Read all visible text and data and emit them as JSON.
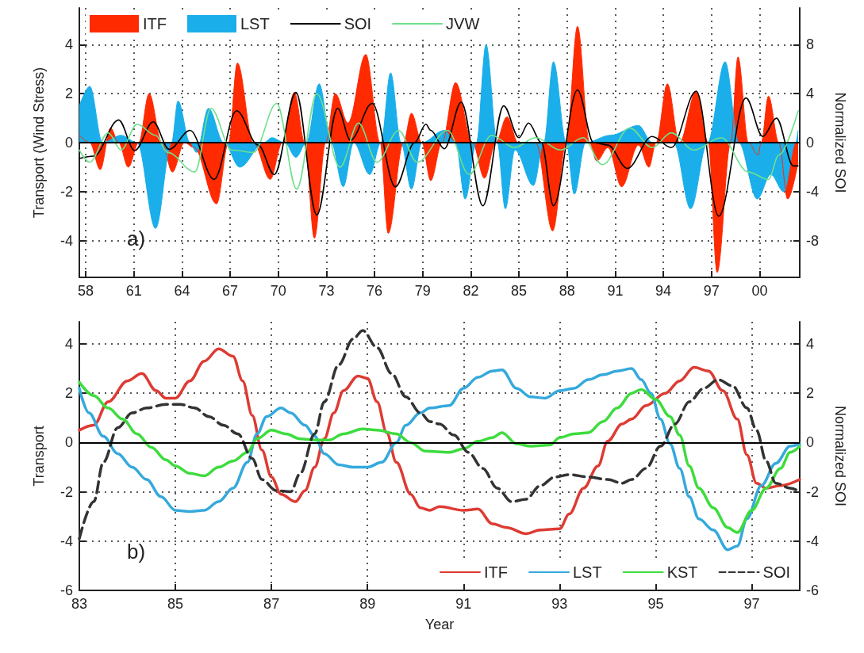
{
  "chart_data": [
    {
      "type": "area",
      "ylabel": "Transport (Wind Stress)",
      "y2label": "Normalized SOI",
      "annotations": [
        "a)"
      ],
      "legend": "top",
      "grid": true,
      "xlim": [
        1957.6,
        2002.5
      ],
      "xticks": [
        {
          "value": 1958,
          "label": "58"
        },
        {
          "value": 1961,
          "label": "61"
        },
        {
          "value": 1964,
          "label": "64"
        },
        {
          "value": 1967,
          "label": "67"
        },
        {
          "value": 1970,
          "label": "70"
        },
        {
          "value": 1973,
          "label": "73"
        },
        {
          "value": 1976,
          "label": "76"
        },
        {
          "value": 1979,
          "label": "79"
        },
        {
          "value": 1982,
          "label": "82"
        },
        {
          "value": 1985,
          "label": "85"
        },
        {
          "value": 1988,
          "label": "88"
        },
        {
          "value": 1991,
          "label": "91"
        },
        {
          "value": 1994,
          "label": "94"
        },
        {
          "value": 1997,
          "label": "97"
        },
        {
          "value": 2000,
          "label": "00"
        }
      ],
      "ylim": [
        -5.5,
        5.5
      ],
      "yticks": [
        -4,
        -2,
        0,
        2,
        4
      ],
      "y2lim": [
        -11,
        11
      ],
      "y2ticks": [
        -8,
        -4,
        0,
        4,
        8
      ],
      "ref_lines": [
        {
          "axis": "y",
          "value": 0,
          "color": "#000000"
        }
      ],
      "series": [
        {
          "name": "ITF",
          "color": "#ff2a00",
          "x": [
            1957.6,
            1958.25,
            1958.9,
            1959.55,
            1960.05,
            1960.65,
            1961.3,
            1961.95,
            1962.75,
            1963.4,
            1964.15,
            1964.75,
            1966.15,
            1966.9,
            1967.45,
            1968.45,
            1969.5,
            1970.25,
            1971.0,
            1971.65,
            1972.25,
            1972.95,
            1973.55,
            1974.35,
            1975.45,
            1976.35,
            1976.85,
            1977.8,
            1978.3,
            1978.95,
            1979.5,
            1980.2,
            1981.05,
            1982.1,
            1982.85,
            1983.55,
            1984.25,
            1984.95,
            1986.05,
            1987.1,
            1987.95,
            1988.65,
            1989.4,
            1989.85,
            1990.55,
            1991.4,
            1992.45,
            1993.1,
            1993.55,
            1994.25,
            1995.0,
            1996.05,
            1996.8,
            1997.35,
            1998.2,
            1998.65,
            1999.3,
            1999.9,
            2000.1,
            2000.55,
            2001.2,
            2001.75,
            2002.4
          ],
          "values": [
            0.3,
            0,
            -1.1,
            0.6,
            0,
            -1.0,
            0,
            2.0,
            0,
            -1.2,
            0,
            -0.2,
            -2.5,
            0,
            3.25,
            0,
            -1.5,
            0,
            2.05,
            0,
            -3.9,
            0,
            2.0,
            0.8,
            3.6,
            0,
            -3.7,
            0,
            1.2,
            0,
            -1.55,
            0,
            2.45,
            0,
            -1.45,
            0,
            1.05,
            0,
            0,
            -3.6,
            0,
            4.75,
            0,
            -0.75,
            -0.2,
            -1.8,
            -0.1,
            -1.0,
            0,
            2.4,
            0,
            2.1,
            0,
            -5.3,
            0,
            3.5,
            0,
            -0.5,
            0,
            1.9,
            0,
            -2.3,
            -0.8
          ]
        },
        {
          "name": "LST",
          "color": "#1aaeea",
          "x": [
            1957.6,
            1958.25,
            1959.05,
            1960.2,
            1961.2,
            1962.35,
            1963.35,
            1963.75,
            1964.5,
            1964.9,
            1965.65,
            1966.6,
            1967.6,
            1969.1,
            1969.6,
            1970.4,
            1971.1,
            1971.75,
            1972.55,
            1973.3,
            1974.05,
            1974.7,
            1975.7,
            1976.4,
            1977.0,
            1977.65,
            1978.3,
            1978.95,
            1980.35,
            1981.05,
            1981.65,
            1982.35,
            1982.95,
            1983.65,
            1984.15,
            1984.75,
            1985.9,
            1986.55,
            1987.15,
            1987.95,
            1988.45,
            1989.15,
            1990.7,
            1992.45,
            1993.3,
            1994.65,
            1995.7,
            1996.75,
            1997.85,
            1998.7,
            1999.85,
            2000.7,
            2001.5,
            2002.25,
            2002.4
          ],
          "values": [
            1.5,
            2.3,
            0,
            0.3,
            0,
            -3.5,
            0,
            1.7,
            0,
            -0.4,
            1.4,
            0,
            -1.0,
            0,
            0.2,
            0,
            -0.6,
            0,
            2.4,
            0,
            -1.8,
            0,
            -1.3,
            0,
            2.85,
            0,
            -1.9,
            0,
            0.5,
            0,
            -2.3,
            0,
            4.0,
            0,
            -2.7,
            -0.3,
            -1.75,
            0,
            3.3,
            0,
            -2.1,
            0,
            0.3,
            0.7,
            0,
            0,
            -2.7,
            0,
            3.3,
            0,
            -2.3,
            -1.3,
            -2.0,
            0,
            0.5
          ]
        },
        {
          "name": "SOI",
          "type": "line",
          "axis": "y2",
          "color": "#000000",
          "x": [
            1957.6,
            1958.5,
            1960.05,
            1961.05,
            1962.2,
            1963.2,
            1964.5,
            1966.0,
            1967.4,
            1968.75,
            1969.75,
            1971.1,
            1972.4,
            1973.7,
            1974.5,
            1975.85,
            1977.3,
            1978.5,
            1979.2,
            1979.5,
            1980.35,
            1981.4,
            1982.75,
            1984.05,
            1985.0,
            1985.6,
            1986.4,
            1987.15,
            1988.65,
            1989.65,
            1990.55,
            1991.75,
            1993.3,
            1994.5,
            1996.05,
            1997.45,
            1999.15,
            2000.2,
            2001.05,
            2002.1,
            2002.4
          ],
          "values": [
            -1.3,
            -1.1,
            1.85,
            -0.65,
            1.7,
            -0.55,
            1.0,
            -3.0,
            2.6,
            -0.2,
            -2.6,
            4.1,
            -5.9,
            2.8,
            0.2,
            3.2,
            -3.6,
            0,
            1.5,
            1.0,
            -0.5,
            3.3,
            -5.15,
            3.0,
            0.4,
            1.6,
            0,
            -5.15,
            4.3,
            0,
            -0.2,
            -2.1,
            0.5,
            -0.4,
            4.2,
            -6.0,
            3.65,
            0.5,
            2.0,
            -1.9,
            -1.9
          ]
        },
        {
          "name": "JVW",
          "type": "line",
          "color": "#6ee08c",
          "x": [
            1957.6,
            1958.25,
            1959.4,
            1960.2,
            1961.2,
            1962.35,
            1963.1,
            1964.8,
            1965.8,
            1967.1,
            1968.45,
            1969.9,
            1971.15,
            1972.4,
            1973.85,
            1975.0,
            1976.15,
            1977.5,
            1978.65,
            1980.55,
            1981.9,
            1983.3,
            1984.7,
            1986.05,
            1987.6,
            1989.0,
            1990.2,
            1991.9,
            1993.3,
            1994.5,
            1995.9,
            1997.6,
            1999.3,
            2000.55,
            2001.2,
            2002.4
          ],
          "values": [
            -0.3,
            -0.8,
            0.4,
            -0.3,
            0.75,
            0.3,
            -0.4,
            -1.2,
            1.4,
            -0.3,
            -0.4,
            1.6,
            -1.9,
            2.0,
            -1.0,
            0.8,
            -0.8,
            0.5,
            -0.8,
            0.5,
            -1.3,
            0.3,
            -0.2,
            0.2,
            -0.3,
            0.2,
            -0.9,
            0.6,
            -0.2,
            0.4,
            -0.3,
            0.2,
            -1.2,
            -1.5,
            -0.5,
            1.3
          ]
        }
      ]
    },
    {
      "type": "line",
      "xlabel": "Year",
      "ylabel": "Transport",
      "y2label": "Normalized SOI",
      "annotations": [
        "b)"
      ],
      "legend": "bottom right",
      "grid": true,
      "xlim": [
        1983,
        1998
      ],
      "xticks": [
        {
          "value": 1983,
          "label": "83"
        },
        {
          "value": 1985,
          "label": "85"
        },
        {
          "value": 1987,
          "label": "87"
        },
        {
          "value": 1989,
          "label": "89"
        },
        {
          "value": 1991,
          "label": "91"
        },
        {
          "value": 1993,
          "label": "93"
        },
        {
          "value": 1995,
          "label": "95"
        },
        {
          "value": 1997,
          "label": "97"
        }
      ],
      "ylim": [
        -6,
        4.9
      ],
      "yticks": [
        -6,
        -4,
        -2,
        0,
        2,
        4
      ],
      "y2lim": [
        -6,
        4.9
      ],
      "y2ticks": [
        -6,
        -4,
        -2,
        0,
        2,
        4
      ],
      "ref_lines": [
        {
          "axis": "y",
          "value": 0,
          "color": "#000000"
        }
      ],
      "series": [
        {
          "name": "ITF",
          "color": "#dd3b33",
          "x": [
            1983.0,
            1983.3,
            1983.6,
            1984.0,
            1984.3,
            1984.6,
            1984.8,
            1985.0,
            1985.3,
            1985.6,
            1985.9,
            1986.2,
            1986.4,
            1986.6,
            1986.8,
            1987.0,
            1987.2,
            1987.5,
            1987.7,
            1987.9,
            1988.1,
            1988.3,
            1988.5,
            1988.8,
            1989.0,
            1989.2,
            1989.4,
            1989.6,
            1989.9,
            1990.1,
            1990.3,
            1990.5,
            1991.0,
            1991.3,
            1991.6,
            1991.9,
            1992.3,
            1992.6,
            1993.0,
            1993.2,
            1993.5,
            1993.8,
            1994.0,
            1994.3,
            1994.5,
            1994.8,
            1995.2,
            1995.5,
            1995.8,
            1996.1,
            1996.4,
            1996.7,
            1996.9,
            1997.1,
            1997.3,
            1997.6,
            1998.0
          ],
          "values": [
            0.5,
            0.7,
            1.65,
            2.5,
            2.8,
            2.1,
            1.8,
            1.8,
            2.5,
            3.3,
            3.8,
            3.5,
            2.5,
            1.1,
            -0.3,
            -1.4,
            -2.1,
            -2.4,
            -1.95,
            -1.0,
            0.15,
            1.2,
            2.1,
            2.7,
            2.6,
            1.65,
            0.4,
            -0.8,
            -2.1,
            -2.65,
            -2.75,
            -2.6,
            -2.75,
            -2.7,
            -3.3,
            -3.45,
            -3.7,
            -3.55,
            -3.5,
            -2.9,
            -1.85,
            -0.95,
            0.05,
            0.75,
            0.95,
            1.5,
            2.0,
            2.5,
            3.05,
            2.9,
            2.1,
            0.95,
            -0.5,
            -1.65,
            -1.85,
            -1.75,
            -1.5
          ]
        },
        {
          "name": "LST",
          "color": "#35a9dc",
          "x": [
            1983.0,
            1983.2,
            1983.5,
            1983.8,
            1984.1,
            1984.4,
            1984.7,
            1985.0,
            1985.3,
            1985.6,
            1985.9,
            1986.2,
            1986.5,
            1986.7,
            1986.9,
            1987.2,
            1987.4,
            1987.7,
            1987.9,
            1988.1,
            1988.4,
            1988.7,
            1989.0,
            1989.3,
            1989.6,
            1989.8,
            1990.1,
            1990.3,
            1990.7,
            1991.0,
            1991.3,
            1991.6,
            1991.8,
            1992.1,
            1992.4,
            1992.7,
            1993.0,
            1993.3,
            1993.6,
            1993.9,
            1994.2,
            1994.5,
            1994.7,
            1994.9,
            1995.1,
            1995.3,
            1995.5,
            1995.7,
            1995.9,
            1996.2,
            1996.5,
            1996.7,
            1996.9,
            1997.2,
            1997.5,
            1997.8,
            1998.0
          ],
          "values": [
            2.2,
            1.2,
            0.25,
            -0.45,
            -1.0,
            -1.5,
            -2.2,
            -2.75,
            -2.8,
            -2.75,
            -2.4,
            -1.85,
            -0.8,
            0.35,
            1.05,
            1.4,
            1.2,
            0.7,
            0.25,
            -0.45,
            -0.9,
            -1.0,
            -1.0,
            -0.8,
            0.0,
            0.7,
            1.2,
            1.4,
            1.5,
            2.2,
            2.65,
            2.9,
            2.95,
            2.2,
            1.85,
            1.8,
            2.1,
            2.2,
            2.55,
            2.75,
            2.9,
            3.0,
            2.55,
            2.0,
            0.95,
            -0.05,
            -1.05,
            -2.2,
            -3.1,
            -3.55,
            -4.35,
            -4.2,
            -3.1,
            -1.75,
            -0.85,
            -0.15,
            -0.05
          ]
        },
        {
          "name": "KST",
          "color": "#3ddc3d",
          "x": [
            1983.0,
            1983.3,
            1983.6,
            1983.9,
            1984.2,
            1984.5,
            1984.8,
            1985.0,
            1985.3,
            1985.6,
            1985.9,
            1986.2,
            1986.5,
            1986.7,
            1987.0,
            1987.3,
            1987.6,
            1987.9,
            1988.2,
            1988.5,
            1988.9,
            1989.2,
            1989.6,
            1989.9,
            1990.2,
            1990.7,
            1991.0,
            1991.3,
            1991.6,
            1991.8,
            1992.1,
            1992.4,
            1992.8,
            1993.0,
            1993.3,
            1993.6,
            1993.9,
            1994.2,
            1994.5,
            1994.7,
            1995.0,
            1995.3,
            1995.5,
            1995.7,
            1995.9,
            1996.2,
            1996.5,
            1996.7,
            1997.0,
            1997.3,
            1997.6,
            1997.8,
            1998.0
          ],
          "values": [
            2.45,
            1.9,
            1.4,
            0.95,
            0.35,
            -0.2,
            -0.7,
            -0.95,
            -1.25,
            -1.35,
            -1.0,
            -0.75,
            -0.4,
            0.15,
            0.5,
            0.35,
            0.15,
            0.1,
            0.1,
            0.35,
            0.55,
            0.5,
            0.35,
            0.0,
            -0.35,
            -0.4,
            -0.25,
            0.05,
            0.2,
            0.4,
            -0.05,
            -0.15,
            -0.1,
            0.2,
            0.35,
            0.4,
            0.85,
            1.4,
            2.0,
            2.15,
            1.75,
            1.05,
            0.3,
            -0.95,
            -1.85,
            -2.65,
            -3.45,
            -3.65,
            -2.75,
            -1.85,
            -1.05,
            -0.4,
            -0.15
          ]
        },
        {
          "name": "SOI",
          "axis": "y2",
          "line_style": "dashed",
          "color": "#333333",
          "x": [
            1983.0,
            1983.3,
            1983.5,
            1983.8,
            1984.1,
            1984.4,
            1984.8,
            1985.1,
            1985.4,
            1985.7,
            1986.0,
            1986.3,
            1986.6,
            1986.8,
            1987.1,
            1987.4,
            1987.6,
            1987.9,
            1988.1,
            1988.4,
            1988.7,
            1988.9,
            1989.2,
            1989.5,
            1989.8,
            1990.1,
            1990.3,
            1990.5,
            1990.8,
            1991.1,
            1991.4,
            1991.7,
            1992.0,
            1992.3,
            1992.6,
            1992.9,
            1993.2,
            1993.6,
            1994.0,
            1994.3,
            1994.5,
            1994.8,
            1995.1,
            1995.4,
            1995.7,
            1996.0,
            1996.3,
            1996.6,
            1996.9,
            1997.1,
            1997.3,
            1997.5,
            1997.8,
            1998.0
          ],
          "values": [
            -3.9,
            -2.4,
            -0.8,
            0.6,
            1.2,
            1.4,
            1.55,
            1.55,
            1.4,
            1.05,
            0.7,
            0.35,
            -0.65,
            -1.5,
            -1.95,
            -2.0,
            -1.25,
            0.35,
            1.65,
            3.15,
            4.2,
            4.55,
            3.85,
            2.8,
            1.85,
            1.2,
            0.85,
            0.75,
            0.3,
            -0.4,
            -1.05,
            -1.85,
            -2.4,
            -2.3,
            -1.75,
            -1.4,
            -1.3,
            -1.4,
            -1.5,
            -1.65,
            -1.5,
            -1.05,
            -0.15,
            0.75,
            1.65,
            2.2,
            2.55,
            2.3,
            1.4,
            0.5,
            -0.75,
            -1.65,
            -1.85,
            -2.0
          ]
        }
      ]
    }
  ]
}
